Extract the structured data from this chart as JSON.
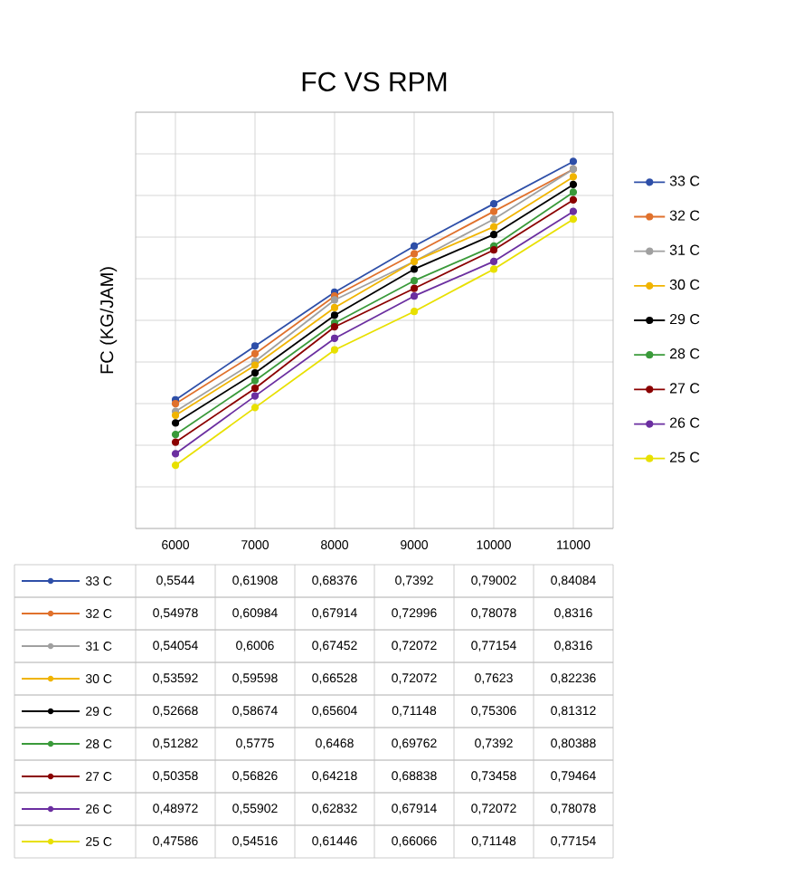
{
  "chart_data": {
    "type": "line",
    "title": "FC VS RPM",
    "ylabel": "FC (KG/JAM)",
    "categories": [
      "6000",
      "7000",
      "8000",
      "9000",
      "10000",
      "11000"
    ],
    "ylim": [
      0.4,
      0.9
    ],
    "yticks": [
      {
        "value": 0.4,
        "label": null
      },
      {
        "value": 0.45,
        "label": null
      },
      {
        "value": 0.5,
        "label": null
      },
      {
        "value": 0.55,
        "label": null
      },
      {
        "value": 0.6,
        "label": null
      },
      {
        "value": 0.65,
        "label": null
      },
      {
        "value": 0.7,
        "label": null
      },
      {
        "value": 0.75,
        "label": null
      },
      {
        "value": 0.8,
        "label": null
      },
      {
        "value": 0.85,
        "label": null
      },
      {
        "value": 0.9,
        "label": null
      }
    ],
    "tick_labels": "x",
    "grid": true,
    "legend": "right",
    "marker": "circle",
    "series": [
      {
        "name": "33 C",
        "color": "#2e4fa8",
        "values": [
          0.5544,
          0.61908,
          0.68376,
          0.7392,
          0.79002,
          0.84084
        ],
        "value_labels": [
          "0,5544",
          "0,61908",
          "0,68376",
          "0,7392",
          "0,79002",
          "0,84084"
        ]
      },
      {
        "name": "32 C",
        "color": "#e0712c",
        "values": [
          0.54978,
          0.60984,
          0.67914,
          0.72996,
          0.78078,
          0.8316
        ],
        "value_labels": [
          "0,54978",
          "0,60984",
          "0,67914",
          "0,72996",
          "0,78078",
          "0,8316"
        ]
      },
      {
        "name": "31 C",
        "color": "#a0a0a0",
        "values": [
          0.54054,
          0.6006,
          0.67452,
          0.72072,
          0.77154,
          0.8316
        ],
        "value_labels": [
          "0,54054",
          "0,6006",
          "0,67452",
          "0,72072",
          "0,77154",
          "0,8316"
        ]
      },
      {
        "name": "30 C",
        "color": "#f0b400",
        "values": [
          0.53592,
          0.59598,
          0.66528,
          0.72072,
          0.7623,
          0.82236
        ],
        "value_labels": [
          "0,53592",
          "0,59598",
          "0,66528",
          "0,72072",
          "0,7623",
          "0,82236"
        ]
      },
      {
        "name": "29 C",
        "color": "#000000",
        "values": [
          0.52668,
          0.58674,
          0.65604,
          0.71148,
          0.75306,
          0.81312
        ],
        "value_labels": [
          "0,52668",
          "0,58674",
          "0,65604",
          "0,71148",
          "0,75306",
          "0,81312"
        ]
      },
      {
        "name": "28 C",
        "color": "#3a9a3a",
        "values": [
          0.51282,
          0.5775,
          0.6468,
          0.69762,
          0.7392,
          0.80388
        ],
        "value_labels": [
          "0,51282",
          "0,5775",
          "0,6468",
          "0,69762",
          "0,7392",
          "0,80388"
        ]
      },
      {
        "name": "27 C",
        "color": "#8b0000",
        "values": [
          0.50358,
          0.56826,
          0.64218,
          0.68838,
          0.73458,
          0.79464
        ],
        "value_labels": [
          "0,50358",
          "0,56826",
          "0,64218",
          "0,68838",
          "0,73458",
          "0,79464"
        ]
      },
      {
        "name": "26 C",
        "color": "#6b2fa0",
        "values": [
          0.48972,
          0.55902,
          0.62832,
          0.67914,
          0.72072,
          0.78078
        ],
        "value_labels": [
          "0,48972",
          "0,55902",
          "0,62832",
          "0,67914",
          "0,72072",
          "0,78078"
        ]
      },
      {
        "name": "25 C",
        "color": "#e8e000",
        "values": [
          0.47586,
          0.54516,
          0.61446,
          0.66066,
          0.71148,
          0.77154
        ],
        "value_labels": [
          "0,47586",
          "0,54516",
          "0,61446",
          "0,66066",
          "0,71148",
          "0,77154"
        ]
      }
    ]
  }
}
